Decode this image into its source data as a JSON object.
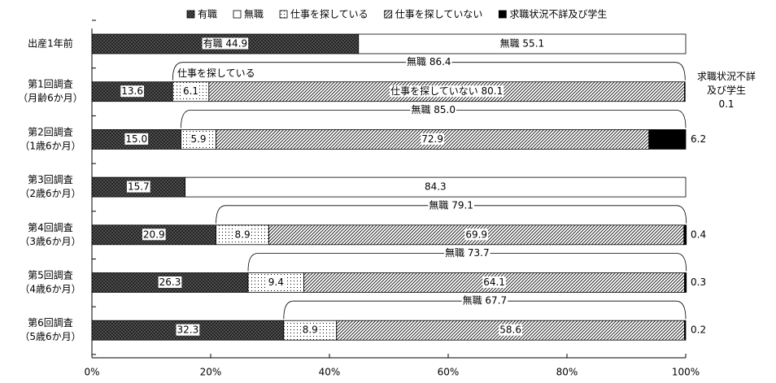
{
  "chart_data": {
    "type": "stacked-bar-horizontal",
    "categories": [
      [
        "出産1年前"
      ],
      [
        "第1回調査",
        "（月齢6か月）"
      ],
      [
        "第2回調査",
        "（1歳6か月）"
      ],
      [
        "第3回調査",
        "（2歳6か月）"
      ],
      [
        "第4回調査",
        "（3歳6か月）"
      ],
      [
        "第5回調査",
        "（4歳6か月）"
      ],
      [
        "第6回調査",
        "（5歳6か月）"
      ]
    ],
    "series": [
      {
        "name": "有職",
        "color": "#4d4d4d",
        "pattern": "crosshatch",
        "values": [
          44.9,
          13.6,
          15.0,
          15.7,
          20.9,
          26.3,
          32.3
        ],
        "value_labels": [
          "有職 44.9",
          "13.6",
          "15.0",
          "15.7",
          "20.9",
          "26.3",
          "32.3"
        ]
      },
      {
        "name": "無職",
        "color": "#ffffff",
        "pattern": "none",
        "values": [
          55.1,
          null,
          null,
          84.3,
          null,
          null,
          null
        ],
        "value_labels": [
          "無職 55.1",
          null,
          null,
          "84.3",
          null,
          null,
          null
        ]
      },
      {
        "name": "仕事を探している",
        "color": "#ffffff",
        "pattern": "dots",
        "values": [
          null,
          6.1,
          5.9,
          null,
          8.9,
          9.4,
          8.9
        ],
        "value_labels": [
          null,
          "6.1",
          "5.9",
          null,
          "8.9",
          "9.4",
          "8.9"
        ]
      },
      {
        "name": "仕事を探していない",
        "color": "#ffffff",
        "pattern": "diagonal",
        "values": [
          null,
          80.1,
          72.9,
          null,
          69.9,
          64.1,
          58.6
        ],
        "value_labels": [
          null,
          "仕事を探していない 80.1",
          "72.9",
          null,
          "69.9",
          "64.1",
          "58.6"
        ]
      },
      {
        "name": "求職状況不詳及び学生",
        "color": "#000000",
        "pattern": "solid",
        "label_position": "outside",
        "values": [
          null,
          0.1,
          6.2,
          null,
          0.4,
          0.3,
          0.2
        ],
        "value_labels": [
          null,
          "0.1",
          "6.2",
          null,
          "0.4",
          "0.3",
          "0.2"
        ]
      }
    ],
    "brace_values": [
      null,
      86.4,
      85.0,
      null,
      79.1,
      73.7,
      67.7
    ],
    "brace_labels": [
      null,
      "無職 86.4",
      "無職 85.0",
      null,
      "無職 79.1",
      "無職 73.7",
      "無職 67.7"
    ],
    "annotation": {
      "text": "仕事を探している",
      "row": 1
    },
    "side_note": {
      "lines": [
        "求職状況不詳",
        "及び学生"
      ],
      "row": 1
    },
    "xlim": [
      0,
      100
    ],
    "xticks": [
      {
        "value": 0,
        "label": "0%"
      },
      {
        "value": 20,
        "label": "20%"
      },
      {
        "value": 40,
        "label": "40%"
      },
      {
        "value": 60,
        "label": "60%"
      },
      {
        "value": 80,
        "label": "80%"
      },
      {
        "value": 100,
        "label": "100%"
      }
    ]
  }
}
